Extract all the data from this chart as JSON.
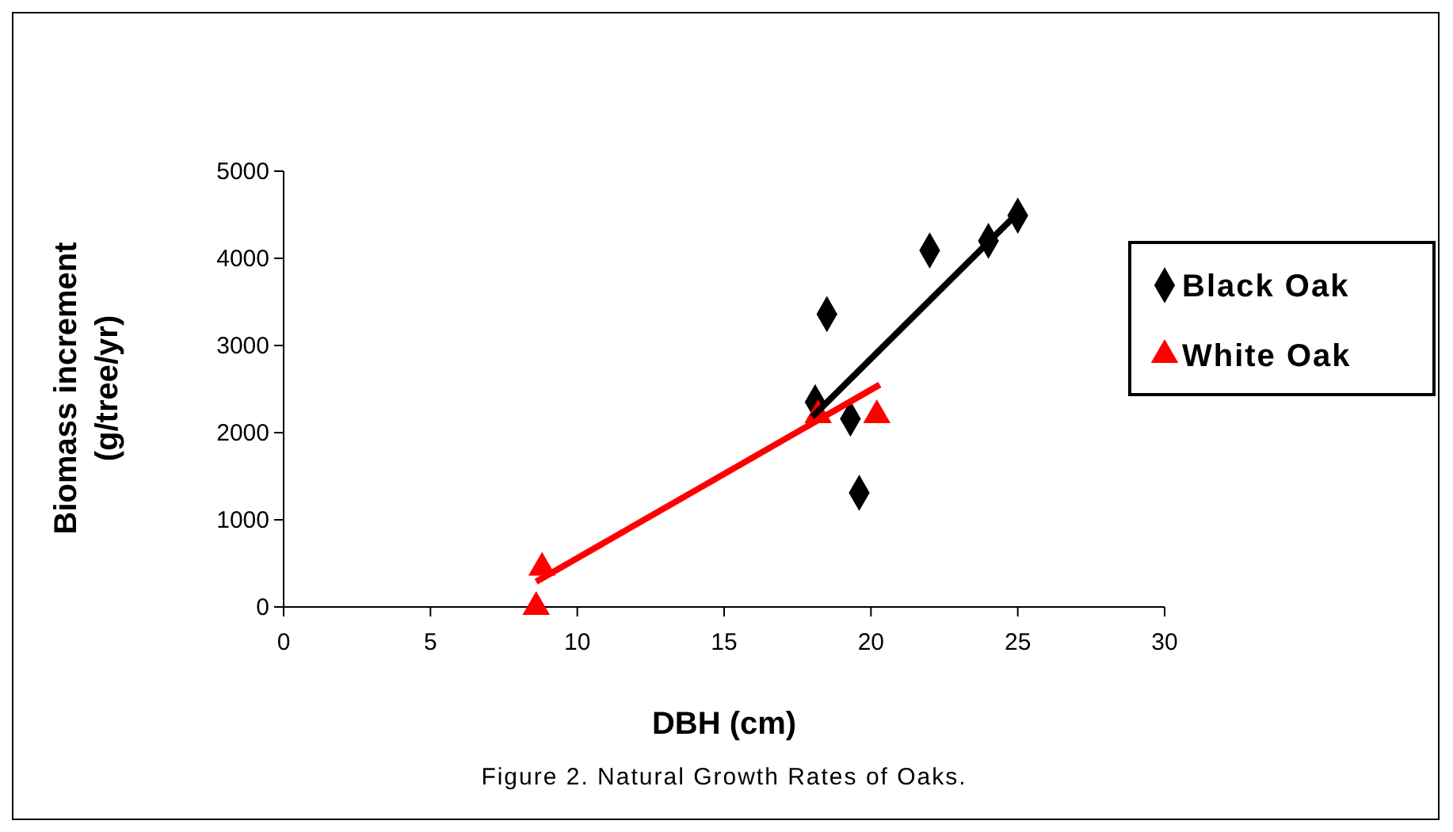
{
  "chart_data": {
    "type": "scatter",
    "xlabel": "DBH (cm)",
    "ylabel": "Biomass increment\n(g/tree/yr)",
    "annotations": [
      "Figure 2.  Natural Growth Rates of Oaks."
    ],
    "xlim": [
      0,
      30
    ],
    "xticks": [
      0,
      5,
      10,
      15,
      20,
      25,
      30
    ],
    "ylim": [
      0,
      5000
    ],
    "yticks": [
      0,
      1000,
      2000,
      3000,
      4000,
      5000
    ],
    "grid": false,
    "legend": "right",
    "series": [
      {
        "name": "Black Oak",
        "color": "#000000",
        "marker": "diamond",
        "x": [
          18.5,
          18.1,
          19.3,
          19.6,
          22.0,
          24.0,
          25.0
        ],
        "values": [
          3360,
          2350,
          2160,
          1310,
          4090,
          4200,
          4490
        ]
      },
      {
        "name": "White Oak",
        "color": "#ff0000",
        "marker": "triangle",
        "x": [
          8.6,
          8.8,
          18.2,
          20.2
        ],
        "values": [
          0,
          450,
          2200,
          2200
        ]
      },
      {
        "type": "line",
        "color": "#000000",
        "marker": "none",
        "x": [
          18.0,
          25.0
        ],
        "values": [
          2180,
          4520
        ]
      },
      {
        "type": "line",
        "color": "#ff0000",
        "marker": "none",
        "x": [
          8.6,
          20.3
        ],
        "values": [
          290,
          2550
        ]
      }
    ]
  }
}
